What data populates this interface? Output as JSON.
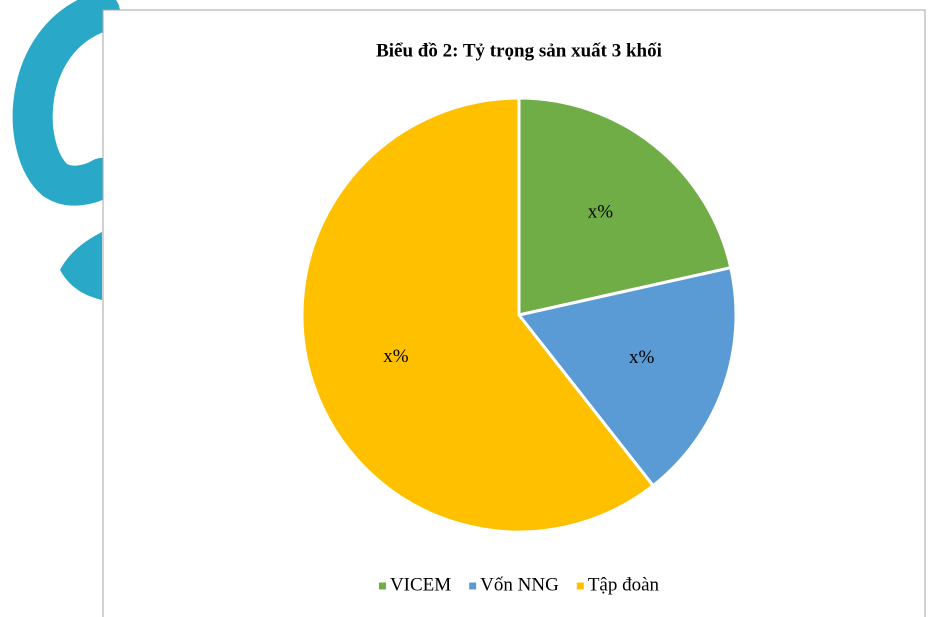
{
  "chart_data": {
    "type": "pie",
    "title": "Biểu đồ 2: Tỷ trọng sản xuất 3 khối",
    "categories": [
      "VICEM",
      "Vốn NNG",
      "Tập đoàn"
    ],
    "values": [
      21.5,
      17.9,
      60.6
    ],
    "value_labels": [
      "x%",
      "x%",
      "x%"
    ],
    "colors": [
      "#70ad47",
      "#5b9bd5",
      "#ffc000"
    ],
    "legend": "bottom"
  }
}
